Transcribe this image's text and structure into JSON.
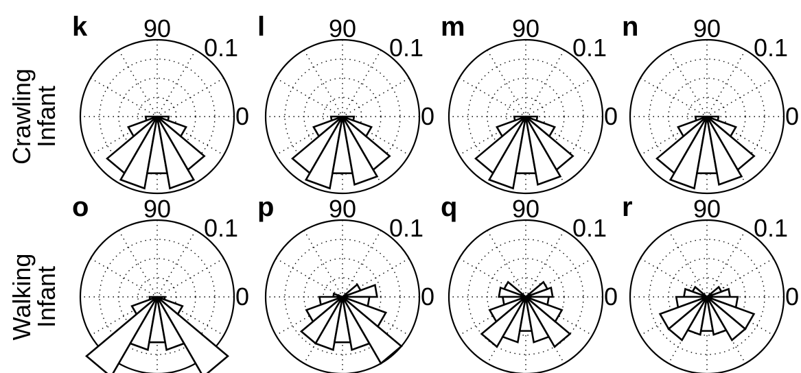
{
  "row_labels": [
    "Crawling\nInfant",
    "Walking\nInfant"
  ],
  "chart_data": [
    {
      "type": "polar-histogram",
      "panel": "k",
      "row": "Crawling Infant",
      "angle_label": "90",
      "radius_label": "0.1",
      "zero_label": "0",
      "rmax": 0.1,
      "bin_width_deg": 20,
      "bins_center_deg": [
        190,
        210,
        230,
        250,
        270,
        290,
        310,
        330,
        350
      ],
      "values": [
        0.015,
        0.04,
        0.085,
        0.095,
        0.075,
        0.095,
        0.08,
        0.04,
        0.015
      ]
    },
    {
      "type": "polar-histogram",
      "panel": "l",
      "row": "Crawling Infant",
      "angle_label": "90",
      "radius_label": "0.1",
      "zero_label": "0",
      "rmax": 0.1,
      "bin_width_deg": 20,
      "bins_center_deg": [
        190,
        210,
        230,
        250,
        270,
        290,
        310,
        330,
        350
      ],
      "values": [
        0.015,
        0.04,
        0.085,
        0.095,
        0.075,
        0.09,
        0.08,
        0.04,
        0.015
      ]
    },
    {
      "type": "polar-histogram",
      "panel": "m",
      "row": "Crawling Infant",
      "angle_label": "90",
      "radius_label": "0.1",
      "zero_label": "0",
      "rmax": 0.1,
      "bin_width_deg": 20,
      "bins_center_deg": [
        190,
        210,
        230,
        250,
        270,
        290,
        310,
        330,
        350
      ],
      "values": [
        0.015,
        0.04,
        0.085,
        0.095,
        0.075,
        0.09,
        0.08,
        0.04,
        0.015
      ]
    },
    {
      "type": "polar-histogram",
      "panel": "n",
      "row": "Crawling Infant",
      "angle_label": "90",
      "radius_label": "0.1",
      "zero_label": "0",
      "rmax": 0.1,
      "bin_width_deg": 20,
      "bins_center_deg": [
        190,
        210,
        230,
        250,
        270,
        290,
        310,
        330,
        350
      ],
      "values": [
        0.015,
        0.04,
        0.085,
        0.095,
        0.075,
        0.09,
        0.08,
        0.04,
        0.015
      ]
    },
    {
      "type": "polar-histogram",
      "panel": "o",
      "row": "Walking Infant",
      "angle_label": "90",
      "radius_label": "0.1",
      "zero_label": "0",
      "rmax": 0.1,
      "bin_width_deg": 20,
      "bins_center_deg": [
        190,
        210,
        230,
        250,
        270,
        290,
        310,
        330,
        350
      ],
      "values": [
        0.01,
        0.035,
        0.12,
        0.07,
        0.06,
        0.07,
        0.12,
        0.035,
        0.01
      ]
    },
    {
      "type": "polar-histogram",
      "panel": "p",
      "row": "Walking Infant",
      "angle_label": "90",
      "radius_label": "0.1",
      "zero_label": "0",
      "rmax": 0.1,
      "bin_width_deg": 20,
      "bins_center_deg": [
        10,
        30,
        170,
        190,
        210,
        230,
        250,
        270,
        290,
        310,
        330,
        350
      ],
      "values": [
        0.045,
        0.025,
        0.012,
        0.03,
        0.05,
        0.07,
        0.07,
        0.06,
        0.07,
        0.1,
        0.06,
        0.035
      ]
    },
    {
      "type": "polar-histogram",
      "panel": "q",
      "row": "Walking Infant",
      "angle_label": "90",
      "radius_label": "0.1",
      "zero_label": "0",
      "rmax": 0.1,
      "bin_width_deg": 20,
      "bins_center_deg": [
        10,
        30,
        150,
        170,
        190,
        210,
        230,
        250,
        270,
        290,
        310,
        330,
        350
      ],
      "values": [
        0.035,
        0.03,
        0.03,
        0.035,
        0.03,
        0.05,
        0.075,
        0.06,
        0.045,
        0.06,
        0.075,
        0.05,
        0.03
      ]
    },
    {
      "type": "polar-histogram",
      "panel": "r",
      "row": "Walking Infant",
      "angle_label": "90",
      "radius_label": "0.1",
      "zero_label": "0",
      "rmax": 0.1,
      "bin_width_deg": 20,
      "bins_center_deg": [
        10,
        30,
        150,
        170,
        190,
        210,
        230,
        250,
        270,
        290,
        310,
        330,
        350
      ],
      "values": [
        0.03,
        0.02,
        0.02,
        0.03,
        0.04,
        0.065,
        0.065,
        0.05,
        0.045,
        0.05,
        0.065,
        0.065,
        0.04
      ]
    }
  ]
}
